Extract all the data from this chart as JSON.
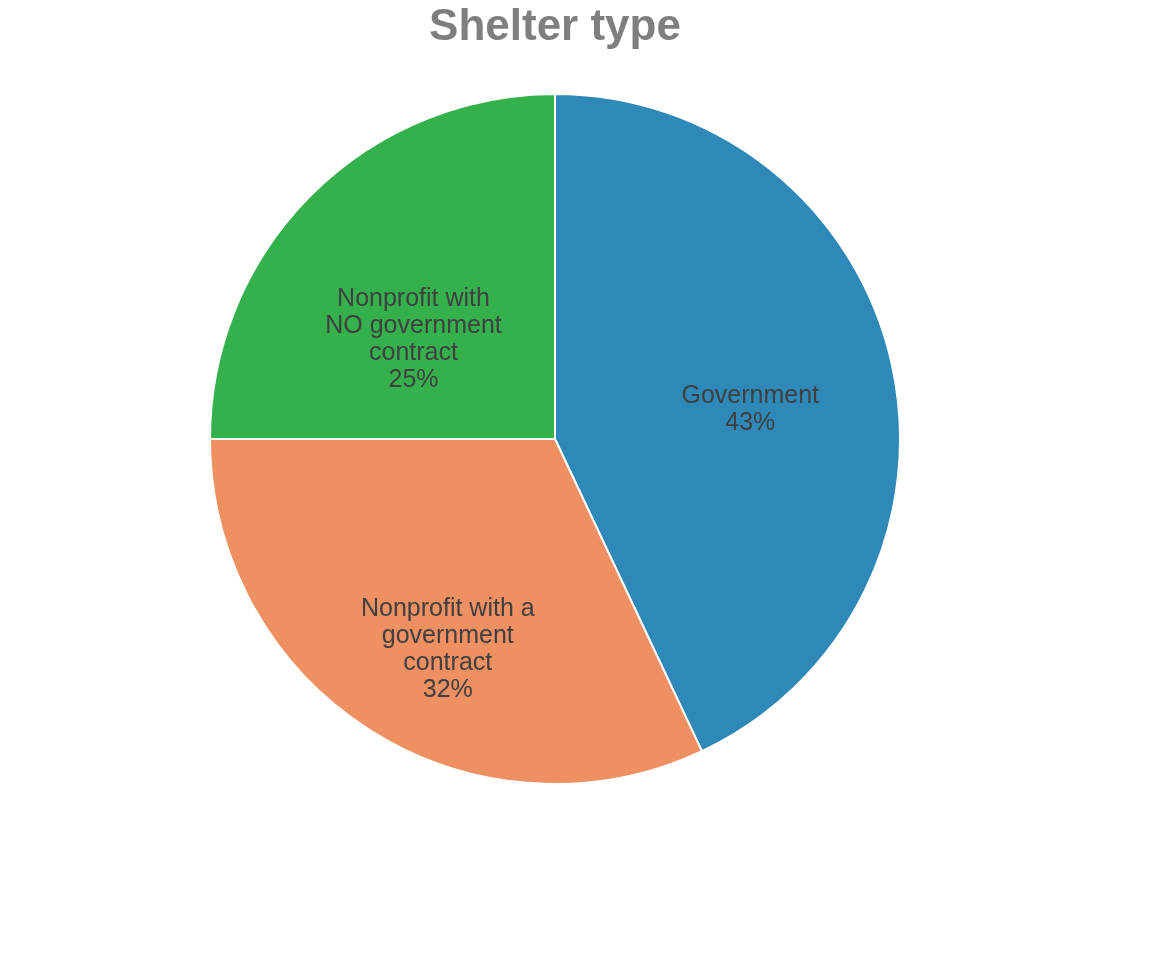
{
  "chart_data": {
    "type": "pie",
    "title": "Shelter type",
    "categories": [
      "Government",
      "Nonprofit with a government contract",
      "Nonprofit with NO government contract"
    ],
    "values": [
      43,
      32,
      25
    ],
    "value_labels": [
      "43%",
      "32%",
      "25%"
    ],
    "colors": [
      "#2e88b8",
      "#ee9062",
      "#34b04c"
    ],
    "legend": false
  }
}
